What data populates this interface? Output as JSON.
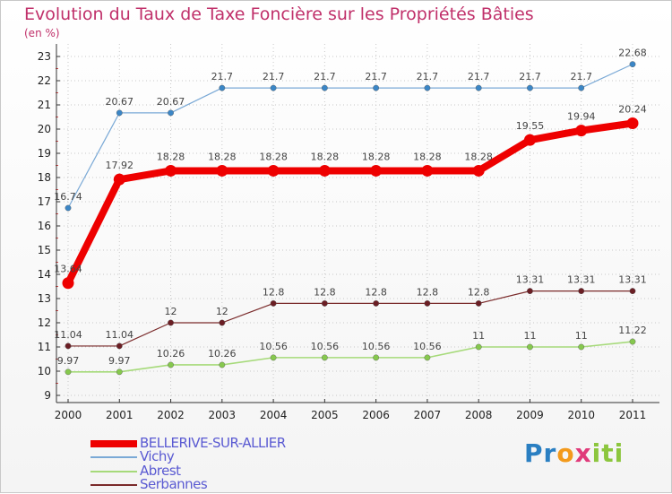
{
  "chart_data": {
    "type": "line",
    "title": "Evolution du Taux de Taxe Foncière sur les Propriétés Bâties",
    "subtitle": "(en %)",
    "categories": [
      "2000",
      "2001",
      "2002",
      "2003",
      "2004",
      "2005",
      "2006",
      "2007",
      "2008",
      "2009",
      "2010",
      "2011"
    ],
    "ylim": [
      9,
      23
    ],
    "yticks": [
      9,
      10,
      11,
      12,
      13,
      14,
      15,
      16,
      17,
      18,
      19,
      20,
      21,
      22,
      23
    ],
    "grid": true,
    "series": [
      {
        "name": "Vichy",
        "color": "#5d9ccf",
        "lineColor": "#7aa9d6",
        "dotColor": "#3b86c6",
        "strokeWidth": 1.2,
        "dotRadius": 3.2,
        "values": [
          16.74,
          20.67,
          20.67,
          21.7,
          21.7,
          21.7,
          21.7,
          21.7,
          21.7,
          21.7,
          21.7,
          22.68
        ],
        "labels": [
          "16.74",
          "20.67",
          "20.67",
          "21.7",
          "21.7",
          "21.7",
          "21.7",
          "21.7",
          "21.7",
          "21.7",
          "21.7",
          "22.68"
        ]
      },
      {
        "name": "BELLERIVE-SUR-ALLIER",
        "color": "#ee0000",
        "lineColor": "#ee0000",
        "dotColor": "#ee0000",
        "strokeWidth": 8,
        "dotRadius": 6.5,
        "values": [
          13.64,
          17.92,
          18.28,
          18.28,
          18.28,
          18.28,
          18.28,
          18.28,
          18.28,
          19.55,
          19.94,
          20.24
        ],
        "labels": [
          "13.64",
          "17.92",
          "18.28",
          "18.28",
          "18.28",
          "18.28",
          "18.28",
          "18.28",
          "18.28",
          "19.55",
          "19.94",
          "20.24"
        ]
      },
      {
        "name": "Serbannes",
        "color": "#6b1e24",
        "lineColor": "#7a2a2a",
        "dotColor": "#6b1e24",
        "strokeWidth": 1.2,
        "dotRadius": 3.2,
        "values": [
          11.04,
          11.04,
          12,
          12,
          12.8,
          12.8,
          12.8,
          12.8,
          12.8,
          13.31,
          13.31,
          13.31
        ],
        "labels": [
          "11.04",
          "11.04",
          "12",
          "12",
          "12.8",
          "12.8",
          "12.8",
          "12.8",
          "12.8",
          "13.31",
          "13.31",
          "13.31"
        ]
      },
      {
        "name": "Abrest",
        "color": "#9ed66f",
        "lineColor": "#a6da7a",
        "dotColor": "#86c84e",
        "strokeWidth": 1.6,
        "dotRadius": 3.2,
        "values": [
          9.97,
          9.97,
          10.26,
          10.26,
          10.56,
          10.56,
          10.56,
          10.56,
          11,
          11,
          11,
          11.22
        ],
        "labels": [
          "9.97",
          "9.97",
          "10.26",
          "10.26",
          "10.56",
          "10.56",
          "10.56",
          "10.56",
          "11",
          "11",
          "11",
          "11.22"
        ]
      }
    ]
  },
  "legend": [
    {
      "name": "BELLERIVE-SUR-ALLIER",
      "color": "#ee0000",
      "thickness": 8
    },
    {
      "name": "Vichy",
      "color": "#7aa9d6",
      "thickness": 2
    },
    {
      "name": "Abrest",
      "color": "#a6da7a",
      "thickness": 2
    },
    {
      "name": "Serbannes",
      "color": "#7a2a2a",
      "thickness": 2
    }
  ],
  "logo": {
    "p1": "Pr",
    "p2": "o",
    "p3": "x",
    "p4": "iti"
  }
}
